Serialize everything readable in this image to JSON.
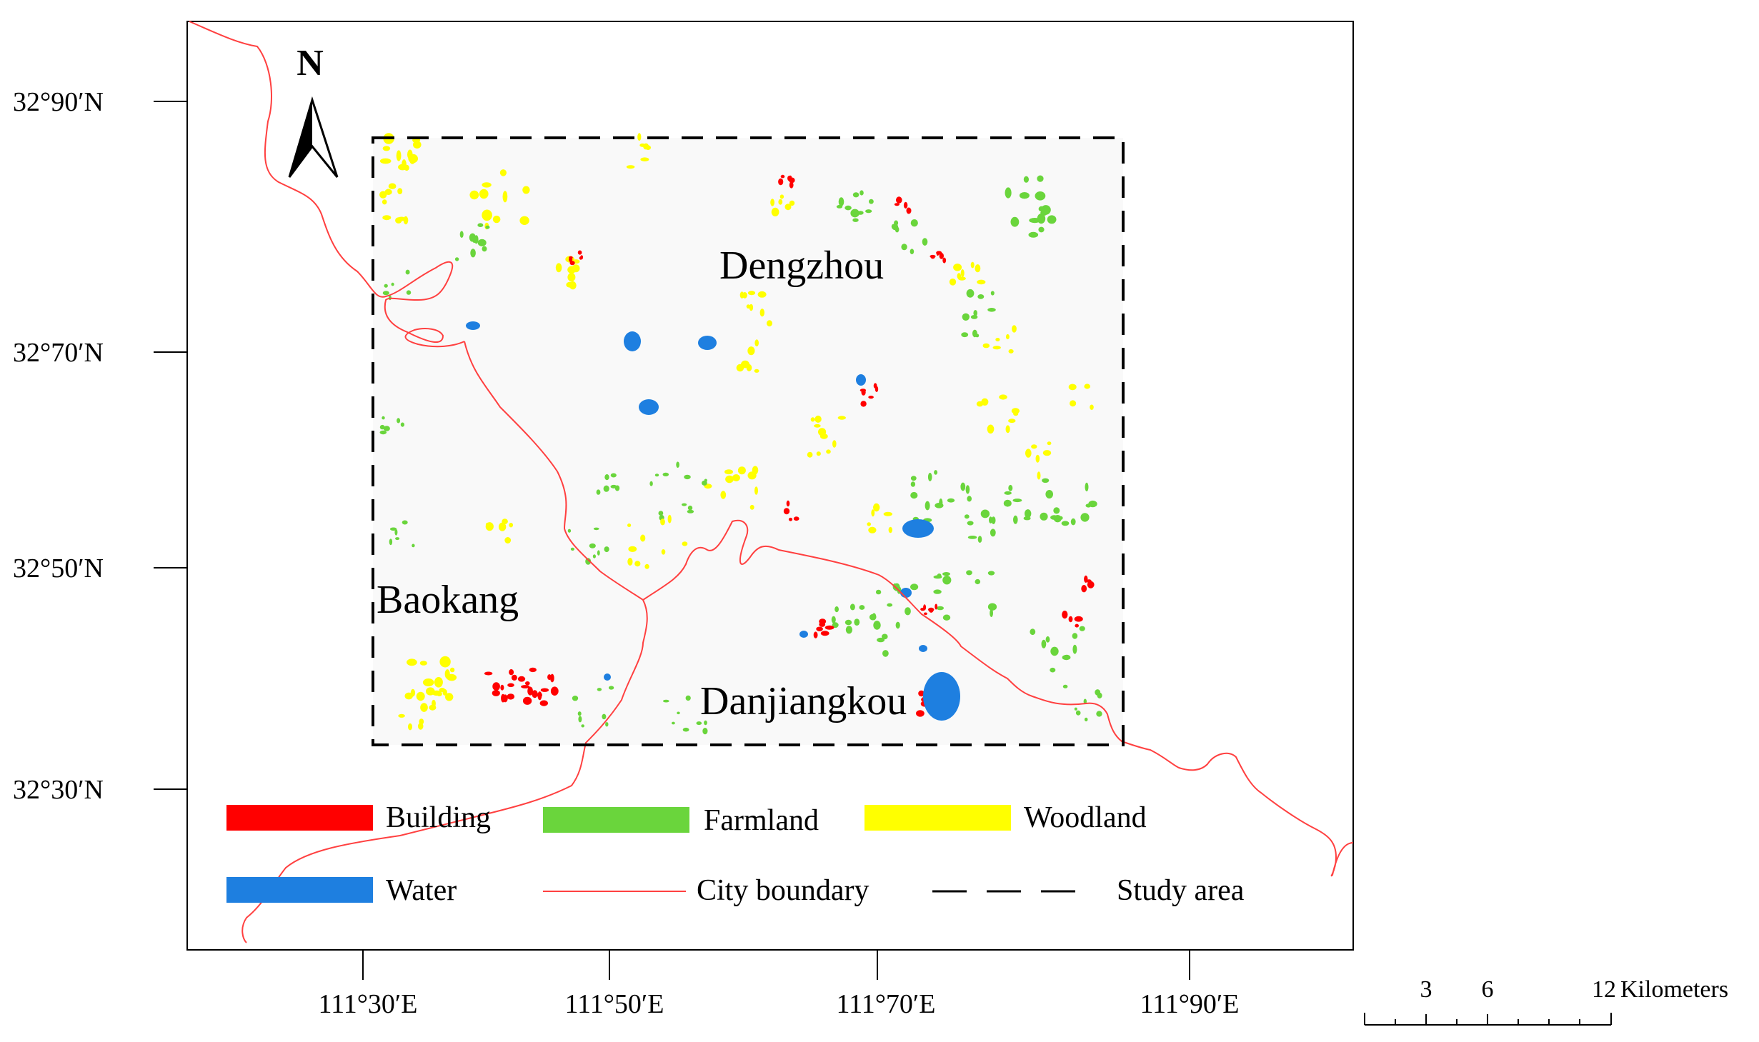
{
  "north_arrow_label": "N",
  "lat_ticks": [
    {
      "label": "32°90′N"
    },
    {
      "label": "32°70′N"
    },
    {
      "label": "32°50′N"
    },
    {
      "label": "32°30′N"
    }
  ],
  "lon_ticks": [
    {
      "label": "111°30′E"
    },
    {
      "label": "111°50′E"
    },
    {
      "label": "111°70′E"
    },
    {
      "label": "111°90′E"
    }
  ],
  "regions": [
    {
      "name": "Dengzhou"
    },
    {
      "name": "Baokang"
    },
    {
      "name": "Danjiangkou"
    }
  ],
  "legend": [
    {
      "label": "Building",
      "color": "#ff0000",
      "kind": "patch"
    },
    {
      "label": "Farmland",
      "color": "#6ad53c",
      "kind": "patch"
    },
    {
      "label": "Woodland",
      "color": "#ffff00",
      "kind": "patch"
    },
    {
      "label": "Water",
      "color": "#1e7fe0",
      "kind": "patch"
    },
    {
      "label": "City boundary",
      "color": "#ff4040",
      "kind": "line"
    },
    {
      "label": "Study area",
      "color": "#000000",
      "kind": "dashed"
    }
  ],
  "scale_bar": {
    "ticks": [
      "3",
      "6",
      "12"
    ],
    "unit": "Kilometers"
  }
}
